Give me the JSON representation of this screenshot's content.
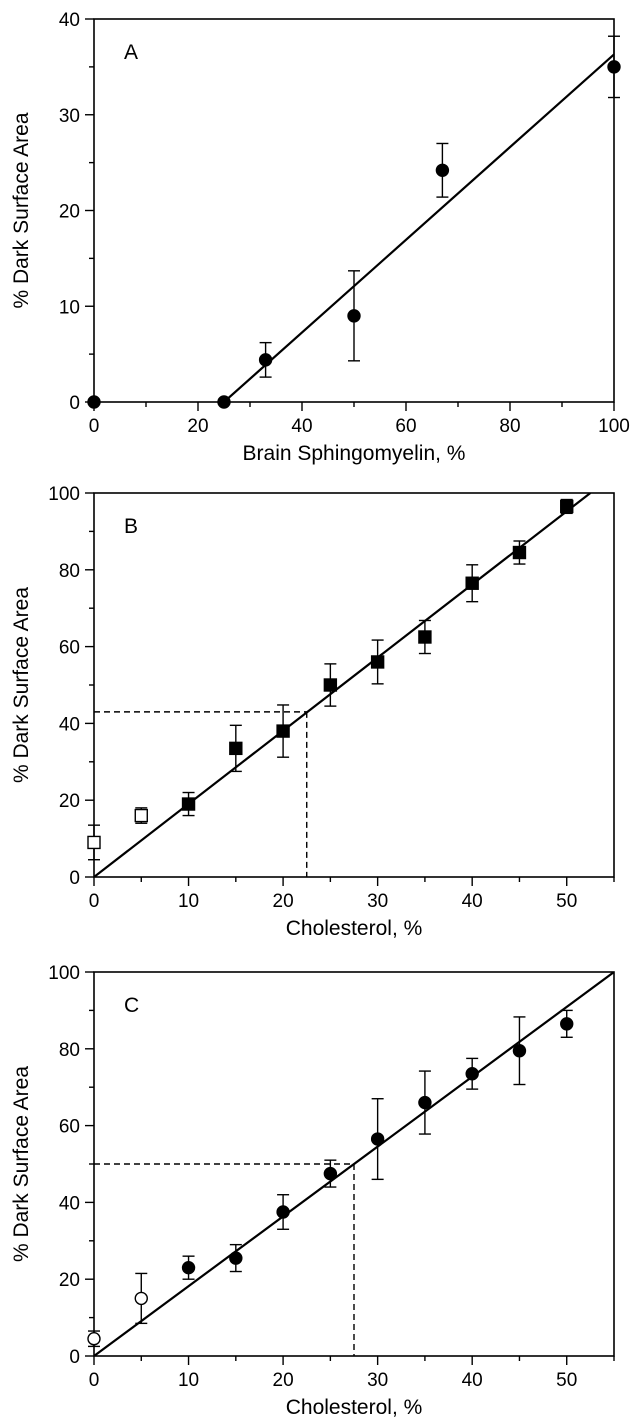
{
  "chart_data": [
    {
      "type": "scatter",
      "panel_label": "A",
      "xlabel": "Brain Sphingomyelin, %",
      "ylabel": "% Dark Surface Area",
      "xlim": [
        0,
        100
      ],
      "ylim": [
        0,
        40
      ],
      "xticks": [
        "0",
        "20",
        "40",
        "60",
        "80",
        "100"
      ],
      "yticks": [
        "0",
        "10",
        "20",
        "30",
        "40"
      ],
      "x_minor_step": 10,
      "y_minor_step": 5,
      "grid": false,
      "series": [
        {
          "marker": "filled-circle",
          "points": [
            {
              "x": 0,
              "y": 0
            },
            {
              "x": 25,
              "y": 0
            },
            {
              "x": 33,
              "y": 4.4,
              "err": 1.8
            },
            {
              "x": 50,
              "y": 9.0,
              "err": 4.7
            },
            {
              "x": 67,
              "y": 24.2,
              "err": 2.8
            },
            {
              "x": 100,
              "y": 35.0,
              "err": 3.2
            }
          ]
        }
      ],
      "fit_line": {
        "x": [
          25,
          100
        ],
        "y": [
          0,
          36.3
        ]
      },
      "dashed_guide": null
    },
    {
      "type": "scatter",
      "panel_label": "B",
      "xlabel": "Cholesterol, %",
      "ylabel": "% Dark Surface Area",
      "xlim": [
        0,
        55
      ],
      "ylim": [
        0,
        100
      ],
      "xticks": [
        "0",
        "10",
        "20",
        "30",
        "40",
        "50"
      ],
      "yticks": [
        "0",
        "20",
        "40",
        "60",
        "80",
        "100"
      ],
      "x_minor_step": 5,
      "y_minor_step": 10,
      "grid": false,
      "series": [
        {
          "marker": "filled-square",
          "points": [
            {
              "x": 10,
              "y": 19.0,
              "err": 3.0
            },
            {
              "x": 15,
              "y": 33.5,
              "err": 6.0
            },
            {
              "x": 20,
              "y": 38.0,
              "err": 6.8
            },
            {
              "x": 25,
              "y": 50.0,
              "err": 5.5
            },
            {
              "x": 30,
              "y": 56.0,
              "err": 5.7
            },
            {
              "x": 35,
              "y": 62.5,
              "err": 4.3
            },
            {
              "x": 40,
              "y": 76.5,
              "err": 4.8
            },
            {
              "x": 45,
              "y": 84.5,
              "err": 3.0
            },
            {
              "x": 50,
              "y": 96.5,
              "err": 1.8
            }
          ]
        },
        {
          "marker": "open-square",
          "points": [
            {
              "x": 0,
              "y": 9.0,
              "err": 4.5
            },
            {
              "x": 5,
              "y": 16.0,
              "err": 2.0
            }
          ]
        }
      ],
      "fit_line": {
        "x": [
          0,
          52.5
        ],
        "y": [
          0,
          100
        ]
      },
      "dashed_guide": {
        "x": 22.5,
        "y": 43
      }
    },
    {
      "type": "scatter",
      "panel_label": "C",
      "xlabel": "Cholesterol, %",
      "ylabel": "% Dark Surface Area",
      "xlim": [
        0,
        55
      ],
      "ylim": [
        0,
        100
      ],
      "xticks": [
        "0",
        "10",
        "20",
        "30",
        "40",
        "50"
      ],
      "yticks": [
        "0",
        "20",
        "40",
        "60",
        "80",
        "100"
      ],
      "x_minor_step": 5,
      "y_minor_step": 10,
      "grid": false,
      "series": [
        {
          "marker": "filled-circle",
          "points": [
            {
              "x": 10,
              "y": 23.0,
              "err": 3.0
            },
            {
              "x": 15,
              "y": 25.5,
              "err": 3.5
            },
            {
              "x": 20,
              "y": 37.5,
              "err": 4.5
            },
            {
              "x": 25,
              "y": 47.5,
              "err": 3.5
            },
            {
              "x": 30,
              "y": 56.5,
              "err": 10.5
            },
            {
              "x": 35,
              "y": 66.0,
              "err": 8.2
            },
            {
              "x": 40,
              "y": 73.5,
              "err": 4.0
            },
            {
              "x": 45,
              "y": 79.5,
              "err": 8.8
            },
            {
              "x": 50,
              "y": 86.5,
              "err": 3.5
            }
          ]
        },
        {
          "marker": "open-circle",
          "points": [
            {
              "x": 0,
              "y": 4.5,
              "err": 2.0
            },
            {
              "x": 5,
              "y": 15.0,
              "err": 6.5
            }
          ]
        }
      ],
      "fit_line": {
        "x": [
          0,
          55
        ],
        "y": [
          0,
          100
        ]
      },
      "dashed_guide": {
        "x": 27.5,
        "y": 50
      }
    }
  ]
}
